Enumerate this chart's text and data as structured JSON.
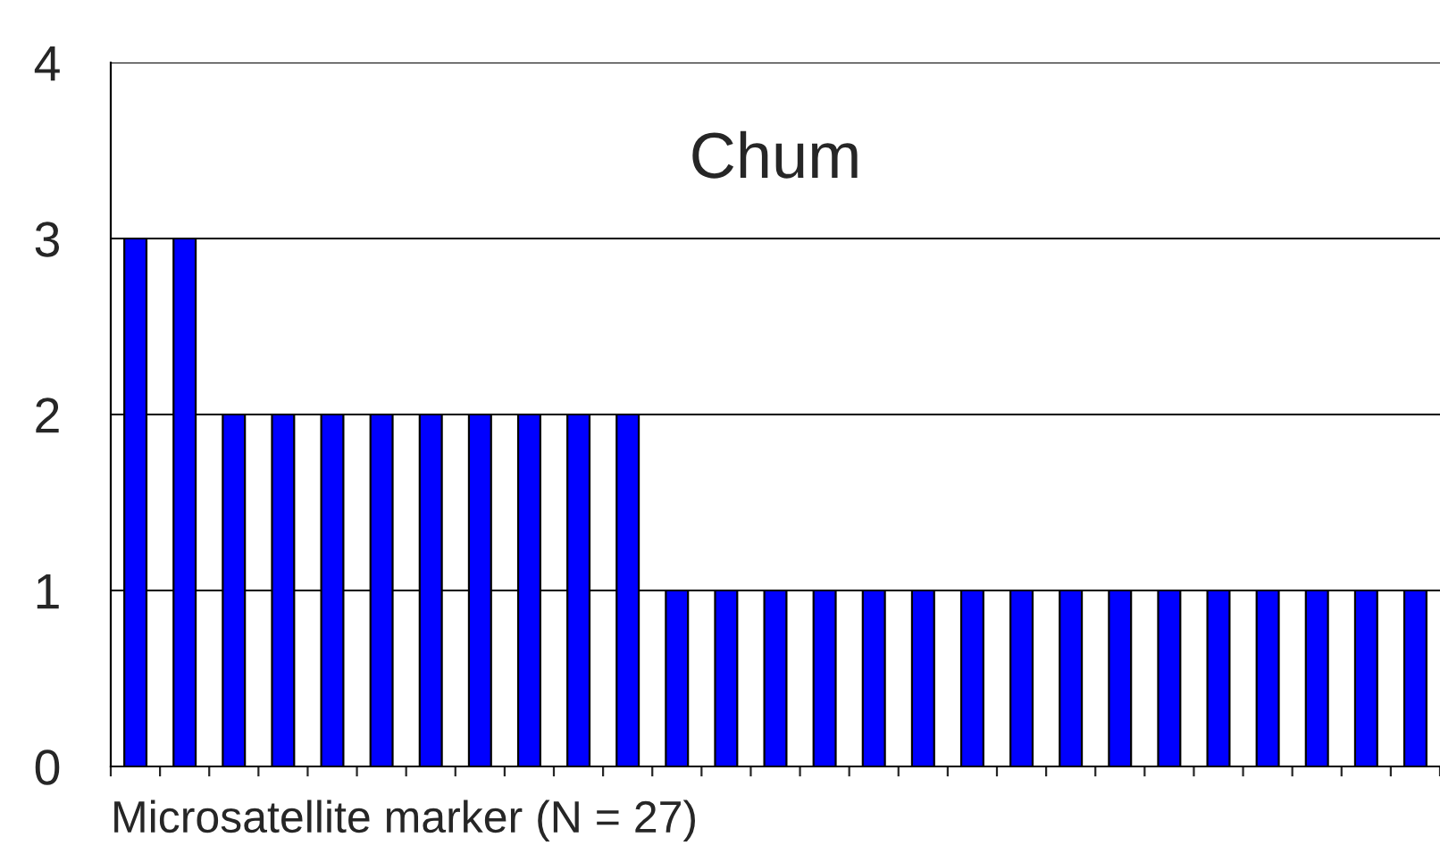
{
  "chart_data": {
    "type": "bar",
    "title": "Chum",
    "xlabel": "Microsatellite marker (N = 27)",
    "categories": [
      null,
      null,
      null,
      null,
      null,
      null,
      null,
      null,
      null,
      null,
      null,
      null,
      null,
      null,
      null,
      null,
      null,
      null,
      null,
      null,
      null,
      null,
      null,
      null,
      null,
      null,
      null
    ],
    "values": [
      3,
      3,
      2,
      2,
      2,
      2,
      2,
      2,
      2,
      2,
      2,
      1,
      1,
      1,
      1,
      1,
      1,
      1,
      1,
      1,
      1,
      1,
      1,
      1,
      1,
      1,
      1
    ],
    "color": "#0000ff",
    "ylim": [
      0,
      4
    ],
    "yticks": [
      0,
      1,
      2,
      3,
      4
    ],
    "grid": "y"
  }
}
